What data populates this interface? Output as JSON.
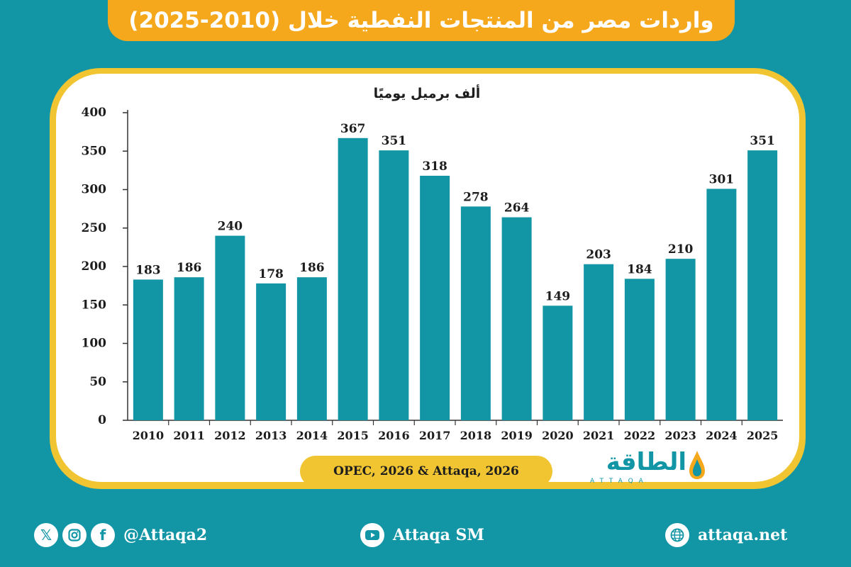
{
  "header": {
    "title": "واردات مصر من المنتجات النفطية خلال (2010-2025)"
  },
  "source": "OPEC, 2026 & Attaqa, 2026",
  "logo": {
    "arabic": "الطاقة",
    "latin": "ATTAQA"
  },
  "footer": {
    "social_handle": "@Attaqa2",
    "youtube_label": "Attaqa SM",
    "website": "attaqa.net",
    "icons": [
      "x-icon",
      "instagram-icon",
      "facebook-icon",
      "youtube-icon",
      "globe-icon"
    ]
  },
  "colors": {
    "background": "#1296a6",
    "bar": "#1296a6",
    "title_bar": "#f6a81d",
    "card_border": "#f0c531",
    "text_dark": "#1d1d1d"
  },
  "chart_data": {
    "type": "bar",
    "title": "",
    "ylabel": "ألف برميل يوميًا",
    "xlabel": "",
    "categories": [
      "2010",
      "2011",
      "2012",
      "2013",
      "2014",
      "2015",
      "2016",
      "2017",
      "2018",
      "2019",
      "2020",
      "2021",
      "2022",
      "2023",
      "2024",
      "2025"
    ],
    "values": [
      183,
      186,
      240,
      178,
      186,
      367,
      351,
      318,
      278,
      264,
      149,
      203,
      184,
      210,
      301,
      351
    ],
    "ylim": [
      0,
      400
    ],
    "yticks": [
      0,
      50,
      100,
      150,
      200,
      250,
      300,
      350,
      400
    ],
    "data_labels": true,
    "grid": false,
    "legend": "none"
  }
}
